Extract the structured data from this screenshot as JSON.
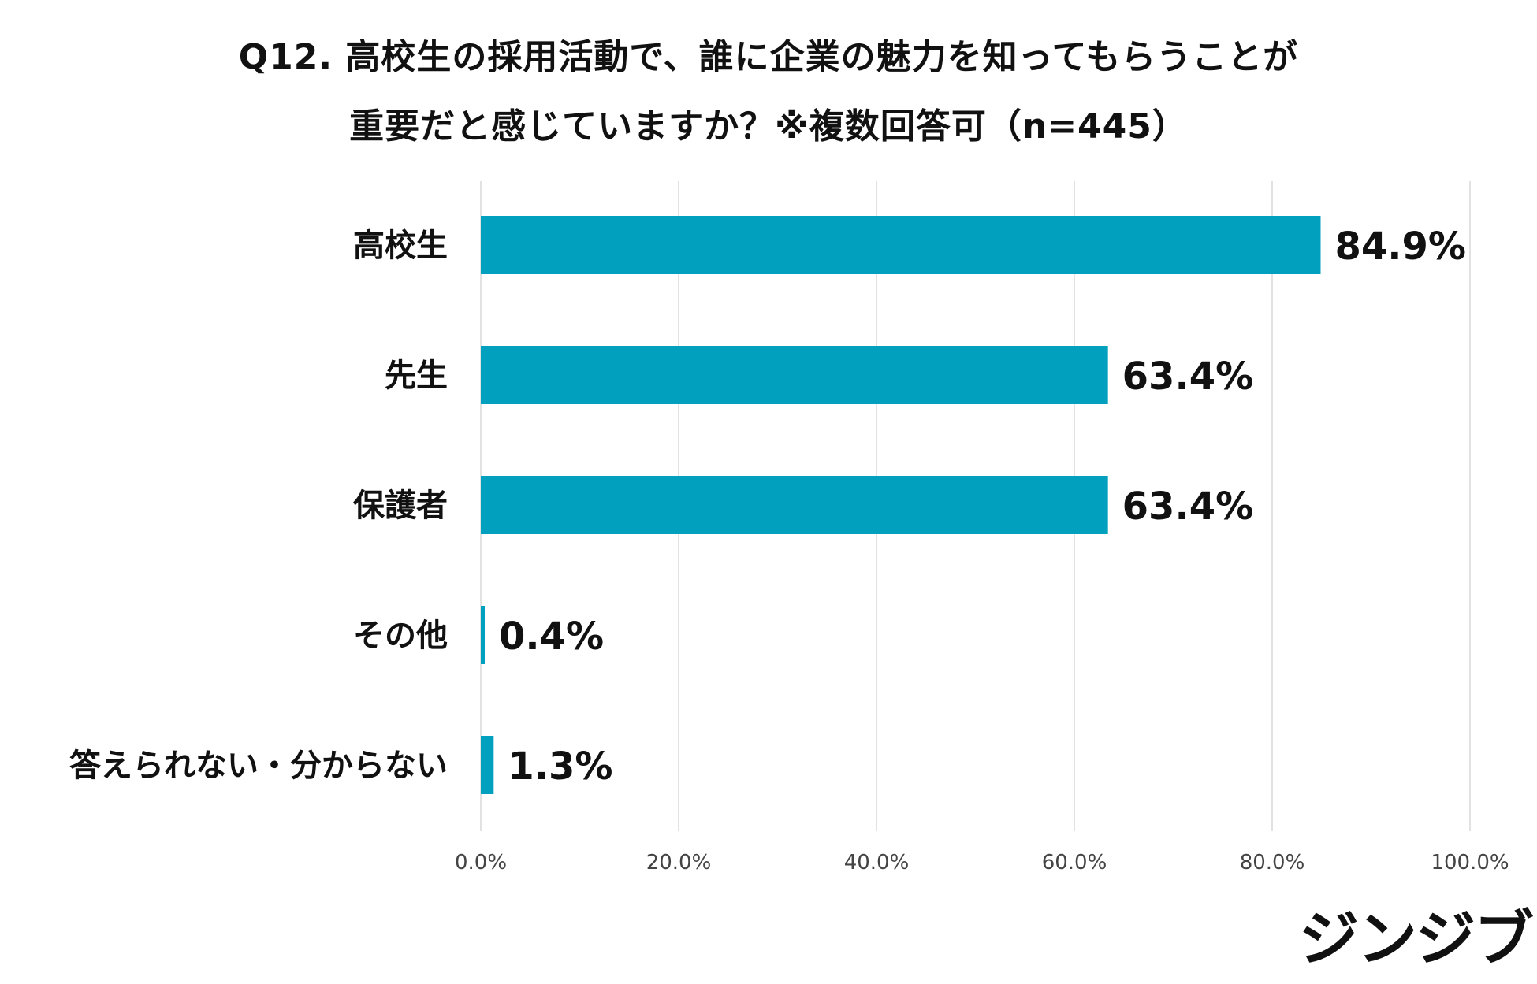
{
  "title_line1": "Q12. 高校生の採用活動で、誰に企業の魅力を知ってもらうことが",
  "title_line2": "重要だと感じていますか？※複数回答可（n=445）",
  "logo_text": "ジンジブ",
  "bar_color": "#00A0BE",
  "chart_data": {
    "type": "bar",
    "orientation": "horizontal",
    "categories": [
      "高校生",
      "先生",
      "保護者",
      "その他",
      "答えられない・分からない"
    ],
    "values": [
      84.9,
      63.4,
      63.4,
      0.4,
      1.3
    ],
    "value_labels": [
      "84.9%",
      "63.4%",
      "63.4%",
      "0.4%",
      "1.3%"
    ],
    "xlim": [
      0,
      100
    ],
    "x_ticks": [
      0,
      20,
      40,
      60,
      80,
      100
    ],
    "x_tick_labels": [
      "0.0%",
      "20.0%",
      "40.0%",
      "60.0%",
      "80.0%",
      "100.0%"
    ],
    "grid": "vertical"
  }
}
